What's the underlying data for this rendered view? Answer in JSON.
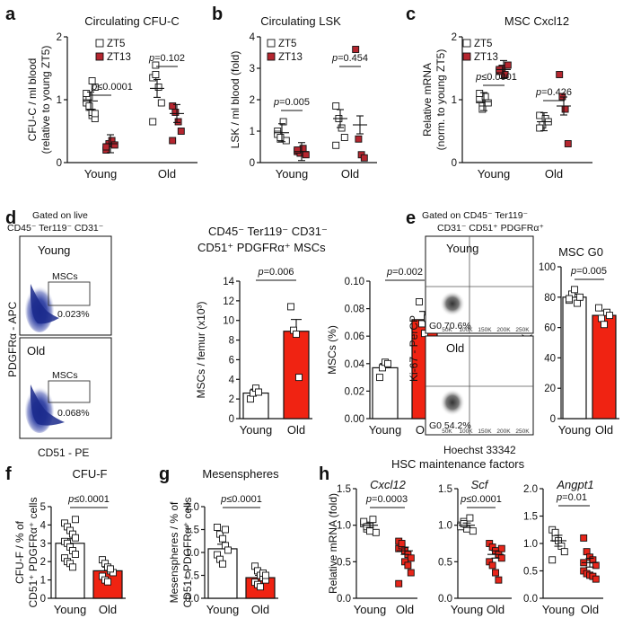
{
  "colors": {
    "red": "#e8251a",
    "darkred": "#b5262f",
    "black": "#111111",
    "bar_red": "#f02312",
    "flow_blue": "#1b2a8c"
  },
  "panel_labels": {
    "a": "a",
    "b": "b",
    "c": "c",
    "d": "d",
    "e": "e",
    "f": "f",
    "g": "g",
    "h": "h"
  },
  "gating": {
    "d_line1": "Gated on live",
    "d_line2": "CD45⁻ Ter119⁻ CD31⁻",
    "e_line1": "Gated on CD45⁻ Ter119⁻",
    "e_line2": "CD31⁻ CD51⁺ PDGFRα⁺",
    "d_group_title1": "CD45⁻ Ter119⁻ CD31⁻",
    "d_group_title2": "CD51⁺ PDGFRα⁺ MSCs"
  },
  "flow": {
    "d_young_label": "Young",
    "d_young_gate": "MSCs",
    "d_young_pct": "0.023%",
    "d_old_label": "Old",
    "d_old_gate": "MSCs",
    "d_old_pct": "0.068%",
    "d_xaxis": "CD51 - PE",
    "d_yaxis": "PDGFRα - APC",
    "e_young_label": "Young",
    "e_young_pct": "G0  70.6%",
    "e_old_label": "Old",
    "e_old_pct": "G0  54.2%",
    "e_xaxis": "Hoechst 33342",
    "e_yaxis": "Ki-67 - PerCP",
    "e_ticks": [
      "50K",
      "100K",
      "150K",
      "200K",
      "250K"
    ]
  },
  "h_group_title": "HSC maintenance  factors",
  "chart_data": [
    {
      "id": "a",
      "type": "scatter",
      "title": "Circulating CFU-C",
      "ylabel": [
        "CFU-C / ml blood",
        "(relative to young ZT5)"
      ],
      "ylim": [
        0,
        2
      ],
      "yticks": [
        "0",
        "1",
        "2"
      ],
      "categories": [
        "Young",
        "Old"
      ],
      "legend": [
        "ZT5",
        "ZT13"
      ],
      "pvalues": [
        "p≤0.0001",
        "p=0.102"
      ],
      "series": [
        {
          "name": "ZT5",
          "values": [
            [
              1.0,
              0.88,
              0.75,
              1.2,
              0.95,
              1.05,
              0.8,
              0.7,
              1.1,
              0.9,
              1.3,
              0.78
            ],
            [
              1.35,
              1.55,
              1.2,
              0.95,
              0.65,
              1.4
            ]
          ],
          "mean": [
            0.98,
            1.18
          ]
        },
        {
          "name": "ZT13",
          "values": [
            [
              0.2,
              0.3,
              0.35,
              0.28,
              0.25
            ],
            [
              0.9,
              0.8,
              0.65,
              0.5,
              0.35
            ]
          ],
          "mean": [
            0.3,
            0.78
          ]
        }
      ]
    },
    {
      "id": "b",
      "type": "scatter",
      "title": "Circulating LSK",
      "ylabel": [
        "LSK / ml blood (fold)"
      ],
      "ylim": [
        0,
        4
      ],
      "yticks": [
        "0",
        "1",
        "2",
        "3",
        "4"
      ],
      "categories": [
        "Young",
        "Old"
      ],
      "legend": [
        "ZT5",
        "ZT13"
      ],
      "pvalues": [
        "p=0.005",
        "p=0.454"
      ],
      "series": [
        {
          "name": "ZT5",
          "values": [
            [
              1.0,
              0.75,
              1.3,
              0.7,
              0.9,
              0.8
            ],
            [
              1.8,
              1.4,
              1.1,
              0.8,
              0.55
            ]
          ],
          "mean": [
            0.95,
            1.4
          ]
        },
        {
          "name": "ZT13",
          "values": [
            [
              0.35,
              0.3,
              0.45,
              0.25,
              0.4
            ],
            [
              3.6,
              0.75,
              0.25,
              0.15
            ]
          ],
          "mean": [
            0.35,
            1.2
          ]
        }
      ]
    },
    {
      "id": "c",
      "type": "scatter",
      "title": "MSC Cxcl12",
      "ylabel": [
        "Relative mRNA",
        "(norm. to young ZT5)"
      ],
      "ylim": [
        0,
        2
      ],
      "yticks": [
        "0",
        "1",
        "2"
      ],
      "categories": [
        "Young",
        "Old"
      ],
      "legend": [
        "ZT5",
        "ZT13"
      ],
      "pvalues": [
        "p≤0.0001",
        "p=0.426"
      ],
      "series": [
        {
          "name": "ZT5",
          "values": [
            [
              1.0,
              0.9,
              1.05,
              0.95,
              1.1,
              0.85
            ],
            [
              0.75,
              0.6,
              0.7,
              0.65,
              0.55
            ]
          ],
          "mean": [
            0.97,
            0.65
          ]
        },
        {
          "name": "ZT13",
          "values": [
            [
              1.45,
              1.5,
              1.4,
              1.55,
              1.48
            ],
            [
              1.4,
              1.05,
              0.85,
              0.3
            ]
          ],
          "mean": [
            1.48,
            0.9
          ]
        }
      ]
    },
    {
      "id": "d1",
      "type": "bar",
      "ylabel": [
        "MSCs / femur (x10³)"
      ],
      "ylim": [
        0,
        14
      ],
      "yticks": [
        "0",
        "2",
        "4",
        "6",
        "8",
        "10",
        "12",
        "14"
      ],
      "categories": [
        "Young",
        "Old"
      ],
      "values": [
        2.6,
        8.9
      ],
      "sem": [
        0.4,
        1.2
      ],
      "points": [
        [
          2.0,
          2.6,
          3.1,
          2.7
        ],
        [
          11.4,
          9.0,
          8.6,
          4.2
        ]
      ],
      "pvalues": [
        "p=0.006"
      ]
    },
    {
      "id": "d2",
      "type": "bar",
      "ylabel": [
        "MSCs (%)"
      ],
      "ylim": [
        0,
        0.1
      ],
      "yticks": [
        "0.00",
        "0.02",
        "0.04",
        "0.06",
        "0.08",
        "0.10"
      ],
      "categories": [
        "Young",
        "Old"
      ],
      "values": [
        0.037,
        0.072
      ],
      "sem": [
        0.003,
        0.006
      ],
      "points": [
        [
          0.03,
          0.037,
          0.041,
          0.04
        ],
        [
          0.085,
          0.069,
          0.062,
          0.073
        ]
      ],
      "pvalues": [
        "p=0.002"
      ]
    },
    {
      "id": "e",
      "type": "bar",
      "title": "MSC G0",
      "ylabel": [
        "Cells (%)"
      ],
      "ylim": [
        0,
        100
      ],
      "yticks": [
        "0",
        "20",
        "40",
        "60",
        "80",
        "100"
      ],
      "categories": [
        "Young",
        "Old"
      ],
      "values": [
        80,
        68
      ],
      "sem": [
        2,
        3
      ],
      "points": [
        [
          78,
          82,
          85,
          76,
          80,
          79
        ],
        [
          73,
          66,
          62,
          70,
          68
        ]
      ],
      "pvalues": [
        "p=0.005"
      ]
    },
    {
      "id": "f",
      "type": "bar",
      "title": "CFU-F",
      "ylabel": [
        "CFU-F / % of",
        "CD51⁺ PDGFRα⁺ cells"
      ],
      "ylim": [
        0,
        5
      ],
      "yticks": [
        "0",
        "1",
        "2",
        "3",
        "4",
        "5"
      ],
      "categories": [
        "Young",
        "Old"
      ],
      "values": [
        3.0,
        1.5
      ],
      "sem": [
        0.25,
        0.2
      ],
      "points": [
        [
          4.1,
          3.9,
          3.7,
          3.5,
          3.3,
          3.1,
          3.0,
          2.8,
          2.6,
          2.4,
          2.2,
          2.0,
          1.9,
          1.7,
          4.3
        ],
        [
          2.1,
          1.9,
          1.7,
          1.5,
          1.4,
          1.2,
          1.0,
          0.9,
          1.6
        ]
      ],
      "pvalues": [
        "p≤0.0001"
      ]
    },
    {
      "id": "g",
      "type": "bar",
      "title": "Mesenspheres",
      "ylabel": [
        "Mesenspheres / % of",
        "CD51⁺ PDGFRα⁺ cells"
      ],
      "ylim": [
        0,
        2
      ],
      "yticks": [
        "0.0",
        "0.5",
        "1.0",
        "1.5",
        "2.0"
      ],
      "categories": [
        "Young",
        "Old"
      ],
      "values": [
        1.08,
        0.45
      ],
      "sem": [
        0.1,
        0.05
      ],
      "points": [
        [
          1.55,
          1.4,
          1.3,
          1.15,
          1.05,
          0.95,
          0.85,
          0.75,
          1.5
        ],
        [
          0.7,
          0.6,
          0.5,
          0.45,
          0.4,
          0.35,
          0.3,
          0.25,
          0.55,
          0.5
        ]
      ],
      "pvalues": [
        "p≤0.0001"
      ]
    },
    {
      "id": "h1",
      "type": "scatter",
      "title": "Cxcl12",
      "ylabel": [
        "Relative mRNA (fold)"
      ],
      "ylim": [
        0,
        1.5
      ],
      "yticks": [
        "0.0",
        "0.5",
        "1.0",
        "1.5"
      ],
      "categories": [
        "Young",
        "Old"
      ],
      "points": [
        [
          1.02,
          0.95,
          1.0,
          1.08,
          0.9,
          1.05,
          0.98,
          0.92
        ],
        [
          0.78,
          0.7,
          0.65,
          0.6,
          0.55,
          0.68,
          0.72,
          0.5,
          0.45,
          0.35,
          0.2,
          0.75
        ]
      ],
      "mean": [
        1.0,
        0.65
      ],
      "sem": [
        0.03,
        0.05
      ],
      "pvalues": [
        "p=0.0003"
      ]
    },
    {
      "id": "h2",
      "type": "scatter",
      "title": "Scf",
      "ylim": [
        0,
        1.5
      ],
      "yticks": [
        "0.0",
        "0.5",
        "1.0",
        "1.5"
      ],
      "categories": [
        "Young",
        "Old"
      ],
      "points": [
        [
          1.0,
          1.05,
          0.95,
          1.1,
          0.92,
          0.98,
          1.02
        ],
        [
          0.75,
          0.7,
          0.65,
          0.6,
          0.55,
          0.5,
          0.45,
          0.35,
          0.25,
          0.68
        ]
      ],
      "mean": [
        1.0,
        0.6
      ],
      "sem": [
        0.03,
        0.05
      ],
      "pvalues": [
        "p≤0.0001"
      ]
    },
    {
      "id": "h3",
      "type": "scatter",
      "title": "Angpt1",
      "ylim": [
        0,
        2
      ],
      "yticks": [
        "0.0",
        "0.5",
        "1.0",
        "1.5",
        "2.0"
      ],
      "categories": [
        "Young",
        "Old"
      ],
      "points": [
        [
          1.25,
          1.1,
          1.05,
          0.95,
          0.85,
          0.7,
          1.2
        ],
        [
          1.1,
          0.85,
          0.75,
          0.7,
          0.6,
          0.5,
          0.45,
          0.42,
          0.4,
          0.35,
          0.65
        ]
      ],
      "mean": [
        1.05,
        0.65
      ],
      "sem": [
        0.1,
        0.08
      ],
      "pvalues": [
        "p=0.01"
      ]
    }
  ]
}
